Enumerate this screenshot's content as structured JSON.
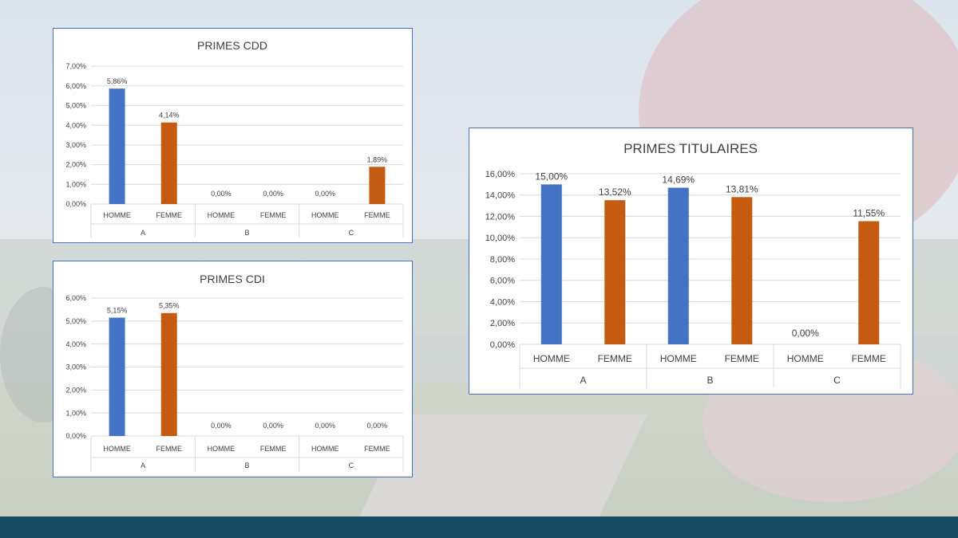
{
  "colors": {
    "homme": "#4472c4",
    "femme": "#c55a11",
    "grid": "#d9d9d9",
    "border": "#4472c4",
    "footer": "#174a63"
  },
  "chart_data": [
    {
      "type": "bar",
      "title": "PRIMES CDD",
      "groups": [
        "A",
        "B",
        "C"
      ],
      "categories": [
        "HOMME",
        "FEMME",
        "HOMME",
        "FEMME",
        "HOMME",
        "FEMME"
      ],
      "values": [
        5.86,
        4.14,
        0,
        0,
        0,
        1.89
      ],
      "labels": [
        "5,86%",
        "4,14%",
        "0,00%",
        "0,00%",
        "0,00%",
        "1,89%"
      ],
      "yticks": [
        "0,00%",
        "1,00%",
        "2,00%",
        "3,00%",
        "4,00%",
        "5,00%",
        "6,00%",
        "7,00%"
      ],
      "ylim": [
        0,
        7
      ],
      "xlabel": "",
      "ylabel": "",
      "grid": true
    },
    {
      "type": "bar",
      "title": "PRIMES CDI",
      "groups": [
        "A",
        "B",
        "C"
      ],
      "categories": [
        "HOMME",
        "FEMME",
        "HOMME",
        "FEMME",
        "HOMME",
        "FEMME"
      ],
      "values": [
        5.15,
        5.35,
        0,
        0,
        0,
        0
      ],
      "labels": [
        "5,15%",
        "5,35%",
        "0,00%",
        "0,00%",
        "0,00%",
        "0,00%"
      ],
      "yticks": [
        "0,00%",
        "1,00%",
        "2,00%",
        "3,00%",
        "4,00%",
        "5,00%",
        "6,00%"
      ],
      "ylim": [
        0,
        6
      ],
      "xlabel": "",
      "ylabel": "",
      "grid": true
    },
    {
      "type": "bar",
      "title": "PRIMES TITULAIRES",
      "groups": [
        "A",
        "B",
        "C"
      ],
      "categories": [
        "HOMME",
        "FEMME",
        "HOMME",
        "FEMME",
        "HOMME",
        "FEMME"
      ],
      "values": [
        15.0,
        13.52,
        14.69,
        13.81,
        0,
        11.55
      ],
      "labels": [
        "15,00%",
        "13,52%",
        "14,69%",
        "13,81%",
        "0,00%",
        "11,55%"
      ],
      "yticks": [
        "0,00%",
        "2,00%",
        "4,00%",
        "6,00%",
        "8,00%",
        "10,00%",
        "12,00%",
        "14,00%",
        "16,00%"
      ],
      "ylim": [
        0,
        16
      ],
      "xlabel": "",
      "ylabel": "",
      "grid": true
    }
  ]
}
